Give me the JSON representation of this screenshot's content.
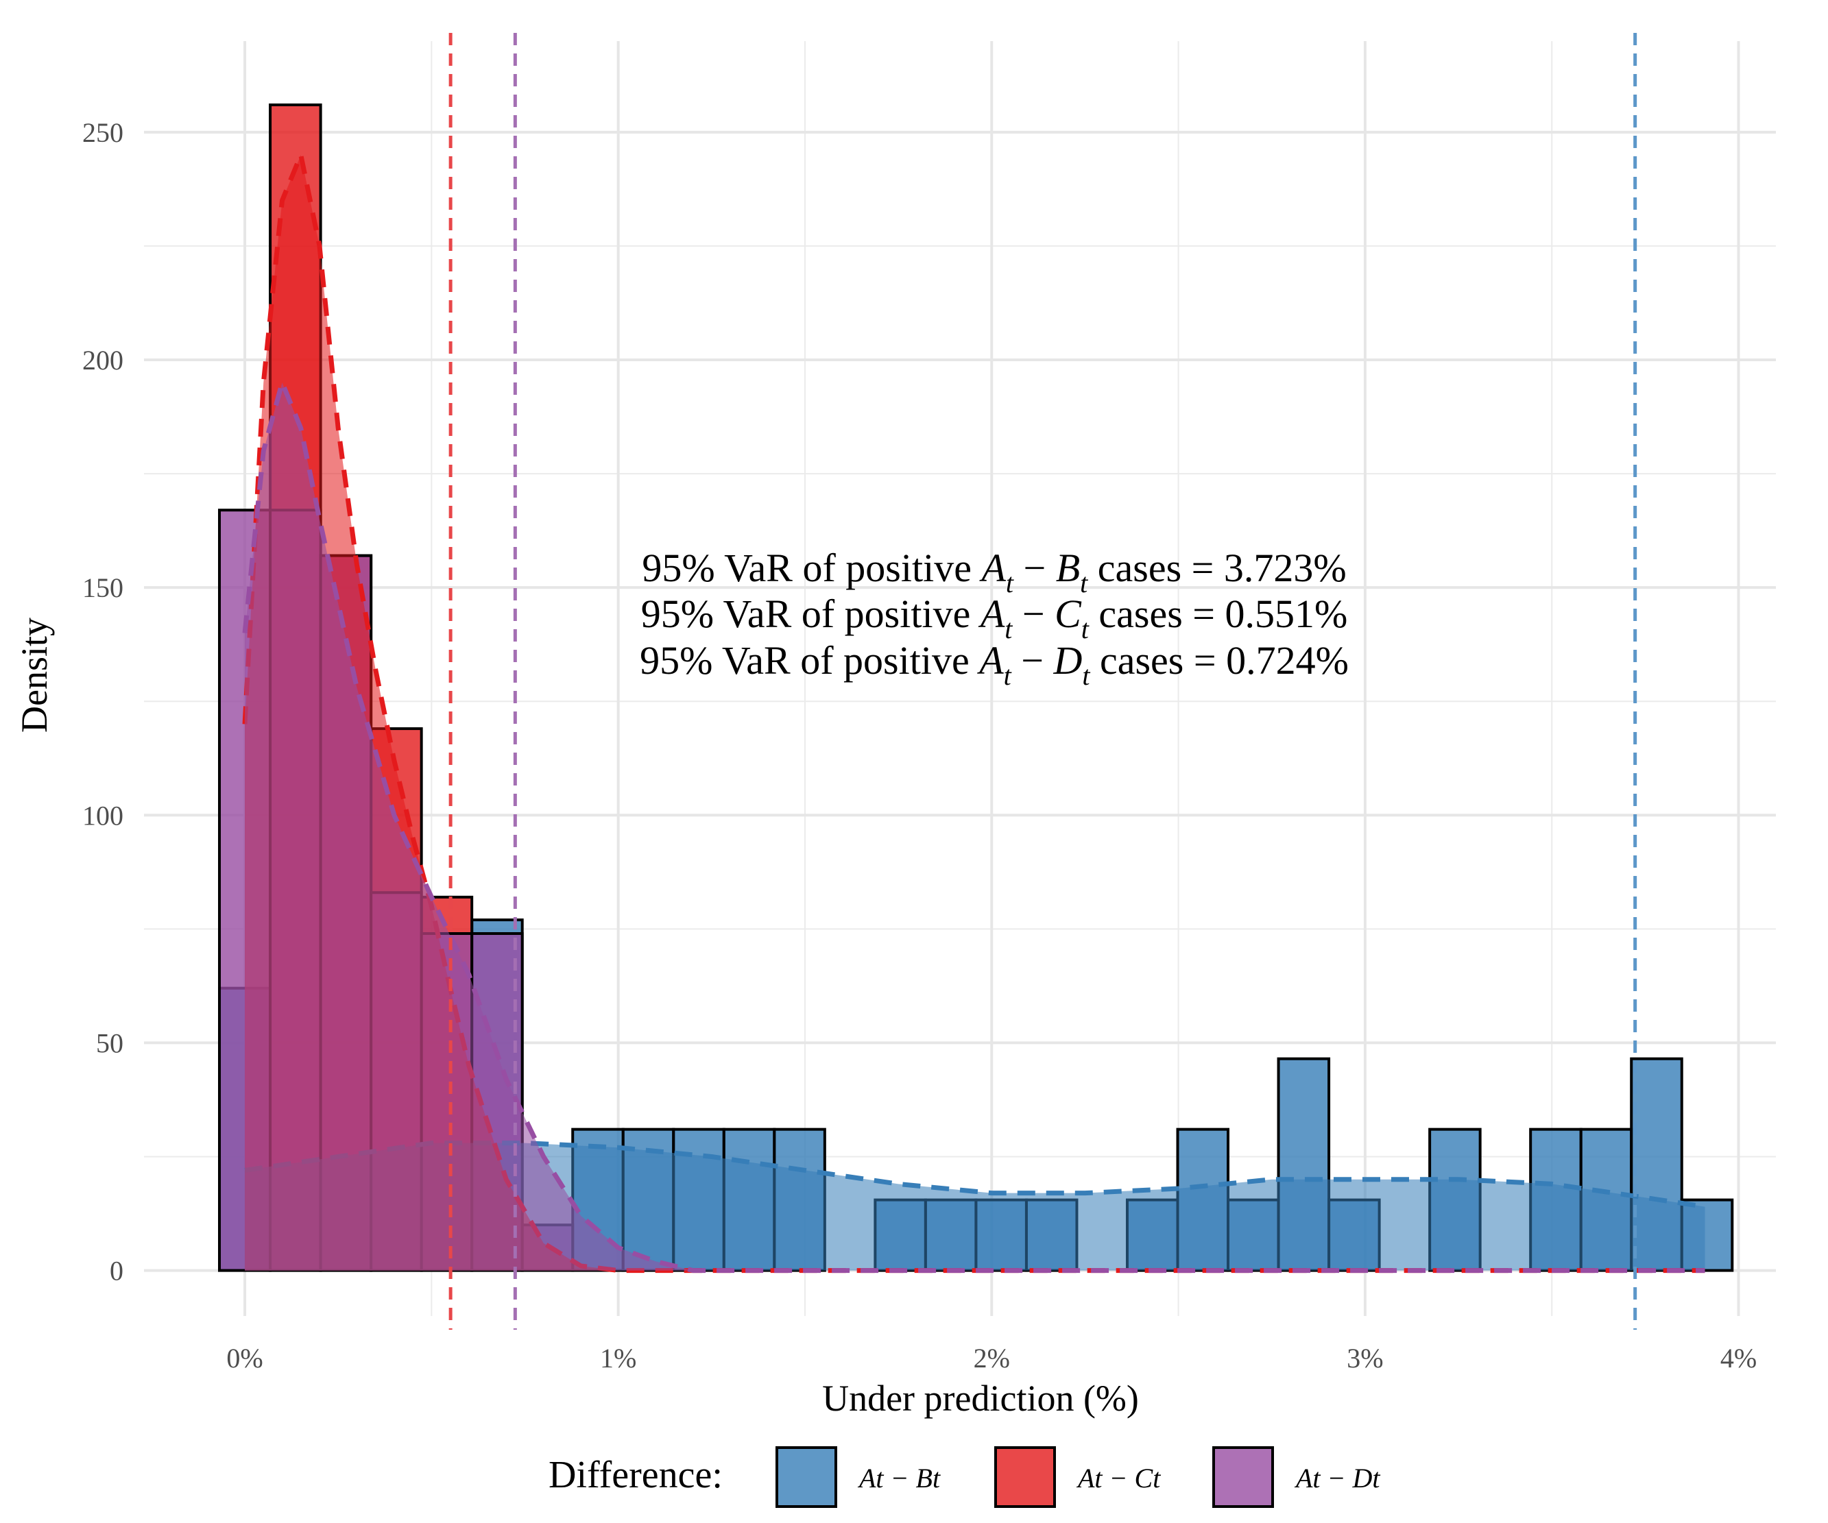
{
  "chart_data": {
    "type": "histogram",
    "xlabel": "Under prediction (%)",
    "ylabel": "Density",
    "xlim": [
      -0.27,
      4.1
    ],
    "ylim": [
      -10,
      270
    ],
    "x_ticks": [
      {
        "value": 0,
        "label": "0%"
      },
      {
        "value": 1,
        "label": "1%"
      },
      {
        "value": 2,
        "label": "2%"
      },
      {
        "value": 3,
        "label": "3%"
      },
      {
        "value": 4,
        "label": "4%"
      }
    ],
    "y_ticks": [
      {
        "value": 0,
        "label": "0"
      },
      {
        "value": 50,
        "label": "50"
      },
      {
        "value": 100,
        "label": "100"
      },
      {
        "value": 150,
        "label": "150"
      },
      {
        "value": 200,
        "label": "200"
      },
      {
        "value": 250,
        "label": "250"
      }
    ],
    "grid": true,
    "legend_position": "bottom",
    "legend_title": "Difference:",
    "annotations": [
      "95% VaR of positive A_t − B_t cases = 3.723%",
      "95% VaR of positive A_t − C_t cases = 0.551%",
      "95% VaR of positive A_t − D_t cases = 0.724%"
    ],
    "series": [
      {
        "name": "A_t − B_t",
        "color": "#377eb8",
        "bin_edges": [
          -0.068,
          0.068,
          0.203,
          0.338,
          0.473,
          0.608,
          0.743,
          0.878,
          1.013,
          1.148,
          1.283,
          1.418,
          1.553,
          1.688,
          1.823,
          1.958,
          2.093,
          2.228,
          2.363,
          2.498,
          2.633,
          2.768,
          2.903,
          3.038,
          3.173,
          3.308,
          3.443,
          3.578,
          3.713,
          3.848,
          3.983
        ],
        "densities": [
          62,
          0,
          0,
          0,
          0,
          77,
          0,
          31,
          31,
          31,
          31,
          31,
          0,
          15.5,
          15.5,
          15.5,
          15.5,
          0,
          15.5,
          31,
          15.5,
          46.5,
          15.5,
          0,
          31,
          0,
          31,
          31,
          46.5,
          15.5
        ],
        "density_curve": {
          "x": [
            0,
            0.25,
            0.5,
            0.75,
            1,
            1.25,
            1.5,
            1.75,
            2,
            2.25,
            2.5,
            2.75,
            3,
            3.25,
            3.5,
            3.75,
            3.91
          ],
          "y": [
            22,
            25,
            28,
            28,
            27,
            25,
            22,
            19,
            17,
            17,
            18,
            20,
            20,
            20,
            19,
            16,
            14
          ]
        },
        "var95": 3.723
      },
      {
        "name": "A_t − C_t",
        "color": "#e41a1c",
        "bin_edges": [
          0.068,
          0.203,
          0.338,
          0.473,
          0.608
        ],
        "densities": [
          256,
          157,
          119,
          82
        ],
        "density_curve": {
          "x": [
            0,
            0.05,
            0.1,
            0.15,
            0.2,
            0.25,
            0.3,
            0.35,
            0.4,
            0.45,
            0.5,
            0.55,
            0.6,
            0.7,
            0.8,
            0.9,
            1,
            1.5,
            2,
            2.5,
            3,
            3.5,
            3.91
          ],
          "y": [
            120,
            195,
            235,
            245,
            225,
            185,
            155,
            132,
            112,
            95,
            80,
            62,
            45,
            20,
            6,
            1,
            0,
            0,
            0,
            0,
            0,
            0,
            0
          ]
        },
        "var95": 0.551
      },
      {
        "name": "A_t − D_t",
        "color": "#984ea3",
        "bin_edges": [
          -0.068,
          0.068,
          0.203,
          0.338,
          0.473,
          0.608,
          0.743,
          0.878
        ],
        "densities": [
          167,
          167,
          157,
          83,
          74,
          74,
          10
        ],
        "density_curve": {
          "x": [
            0,
            0.05,
            0.1,
            0.15,
            0.2,
            0.3,
            0.4,
            0.5,
            0.6,
            0.7,
            0.8,
            0.9,
            1,
            1.1,
            1.2,
            1.5,
            2,
            2.5,
            3,
            3.5,
            3.91
          ],
          "y": [
            140,
            180,
            195,
            185,
            165,
            128,
            100,
            82,
            65,
            42,
            25,
            12,
            5,
            2,
            0,
            0,
            0,
            0,
            0,
            0,
            0
          ]
        },
        "var95": 0.724
      }
    ]
  },
  "legend": {
    "title": "Difference:",
    "items": [
      {
        "name": "A_t − B_t",
        "label": "At − Bt",
        "color": "#377eb8"
      },
      {
        "name": "A_t − C_t",
        "label": "At − Ct",
        "color": "#e41a1c"
      },
      {
        "name": "A_t − D_t",
        "label": "At − Dt",
        "color": "#984ea3"
      }
    ]
  },
  "annotation_lines": [
    {
      "prefix": "95% VaR of positive ",
      "A": "A",
      "sub": "t",
      "op": " − ",
      "B": "B",
      "suffix": " cases = 3.723%"
    },
    {
      "prefix": "95% VaR of positive ",
      "A": "A",
      "sub": "t",
      "op": " − ",
      "B": "C",
      "suffix": " cases = 0.551%"
    },
    {
      "prefix": "95% VaR of positive ",
      "A": "A",
      "sub": "t",
      "op": " − ",
      "B": "D",
      "suffix": " cases = 0.724%"
    }
  ]
}
